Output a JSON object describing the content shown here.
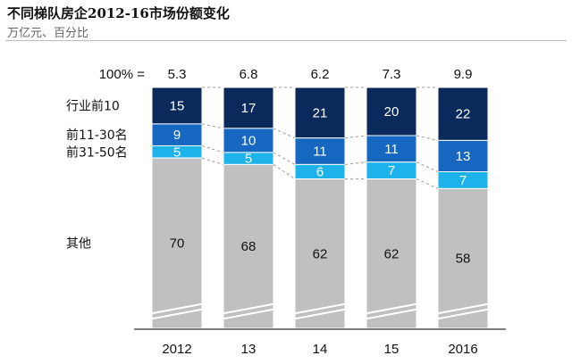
{
  "chart_data": {
    "type": "bar",
    "stacked": true,
    "normalized": true,
    "title": "不同梯队房企2012-16市场份额变化",
    "subtitle": "万亿元、百分比",
    "total_prefix": "100% =",
    "categories": [
      "2012",
      "13",
      "14",
      "15",
      "2016"
    ],
    "totals": [
      "5.3",
      "6.8",
      "6.2",
      "7.3",
      "9.9"
    ],
    "series": [
      {
        "name": "其他",
        "values": [
          70,
          68,
          62,
          62,
          58
        ],
        "color": "#c0c0c0",
        "label_color": "#111111"
      },
      {
        "name": "前31-50名",
        "values": [
          5,
          5,
          6,
          7,
          7
        ],
        "color": "#1eb2ea",
        "label_color": "#ffffff"
      },
      {
        "name": "前11-30名",
        "values": [
          9,
          10,
          11,
          11,
          13
        ],
        "color": "#1667bf",
        "label_color": "#ffffff"
      },
      {
        "name": "行业前10",
        "values": [
          15,
          17,
          21,
          20,
          22
        ],
        "color": "#0b2a5c",
        "label_color": "#ffffff"
      }
    ],
    "axis_break": true,
    "grid": false
  }
}
